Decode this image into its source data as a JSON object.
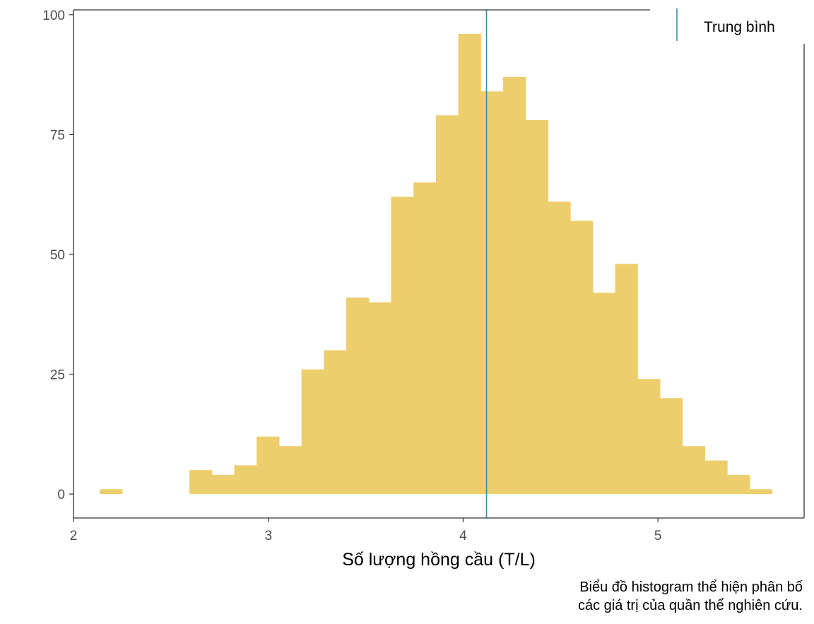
{
  "chart_data": {
    "type": "bar",
    "subtype": "histogram",
    "xlabel": "Số lượng hồng cầu (T/L)",
    "ylabel": "",
    "xlim": [
      2.0,
      5.75
    ],
    "ylim": [
      -5,
      101
    ],
    "x_ticks": [
      2,
      3,
      4,
      5
    ],
    "y_ticks": [
      0,
      25,
      50,
      75,
      100
    ],
    "bin_width": 0.115,
    "bins": [
      {
        "x0": 2.135,
        "count": 1
      },
      {
        "x0": 2.595,
        "count": 5
      },
      {
        "x0": 2.71,
        "count": 4
      },
      {
        "x0": 2.825,
        "count": 6
      },
      {
        "x0": 2.94,
        "count": 12
      },
      {
        "x0": 3.055,
        "count": 10
      },
      {
        "x0": 3.17,
        "count": 26
      },
      {
        "x0": 3.285,
        "count": 30
      },
      {
        "x0": 3.4,
        "count": 41
      },
      {
        "x0": 3.515,
        "count": 40
      },
      {
        "x0": 3.63,
        "count": 62
      },
      {
        "x0": 3.745,
        "count": 65
      },
      {
        "x0": 3.86,
        "count": 79
      },
      {
        "x0": 3.975,
        "count": 96
      },
      {
        "x0": 4.09,
        "count": 84
      },
      {
        "x0": 4.205,
        "count": 87
      },
      {
        "x0": 4.32,
        "count": 78
      },
      {
        "x0": 4.435,
        "count": 61
      },
      {
        "x0": 4.55,
        "count": 57
      },
      {
        "x0": 4.665,
        "count": 42
      },
      {
        "x0": 4.78,
        "count": 48
      },
      {
        "x0": 4.895,
        "count": 24
      },
      {
        "x0": 5.01,
        "count": 20
      },
      {
        "x0": 5.125,
        "count": 10
      },
      {
        "x0": 5.24,
        "count": 7
      },
      {
        "x0": 5.355,
        "count": 4
      },
      {
        "x0": 5.47,
        "count": 1
      }
    ],
    "mean": 4.12,
    "legend": {
      "position": "top-right",
      "entries": [
        {
          "label": "Trung bình"
        }
      ]
    },
    "grid": false,
    "colors": {
      "bar": "#EDCE6C",
      "mean_line": "#3A9299",
      "axis": "#333333",
      "tick_label": "#4d4d4d"
    }
  },
  "caption": {
    "line1": "Biểu đồ histogram thể hiện phân bố",
    "line2": "các giá trị của quần thể nghiên cứu."
  }
}
